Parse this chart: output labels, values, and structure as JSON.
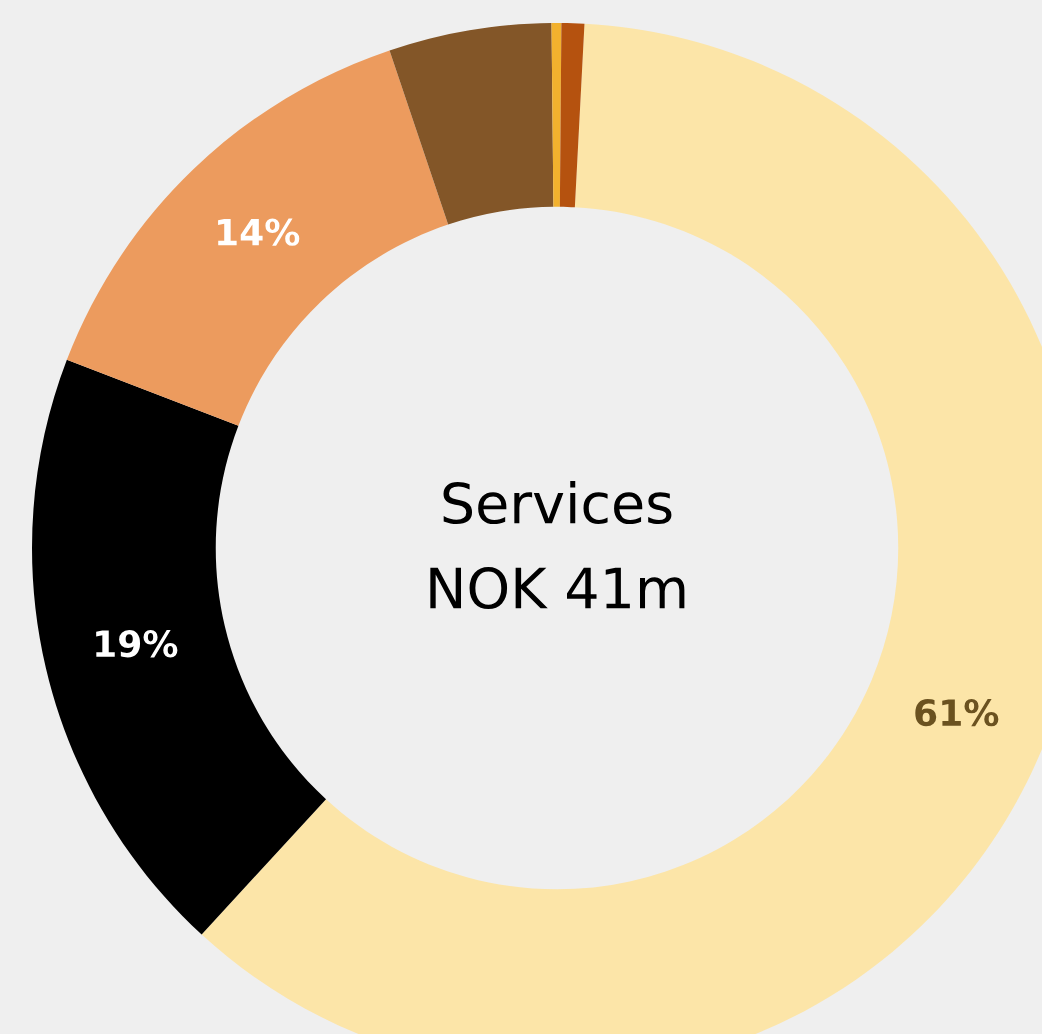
{
  "chart_data": {
    "type": "donut",
    "title": "Services",
    "subtitle": "NOK 41m",
    "categories": [
      null,
      null,
      null,
      null,
      null,
      null
    ],
    "values": [
      61,
      19,
      14,
      5,
      0.3,
      0.7
    ],
    "colors": [
      "#fce5a8",
      "#000000",
      "#ec9b5e",
      "#835628",
      "#f2b12e",
      "#b5520f"
    ],
    "value_labels": [
      "61%",
      "19%",
      "14%",
      null,
      null,
      null
    ]
  }
}
